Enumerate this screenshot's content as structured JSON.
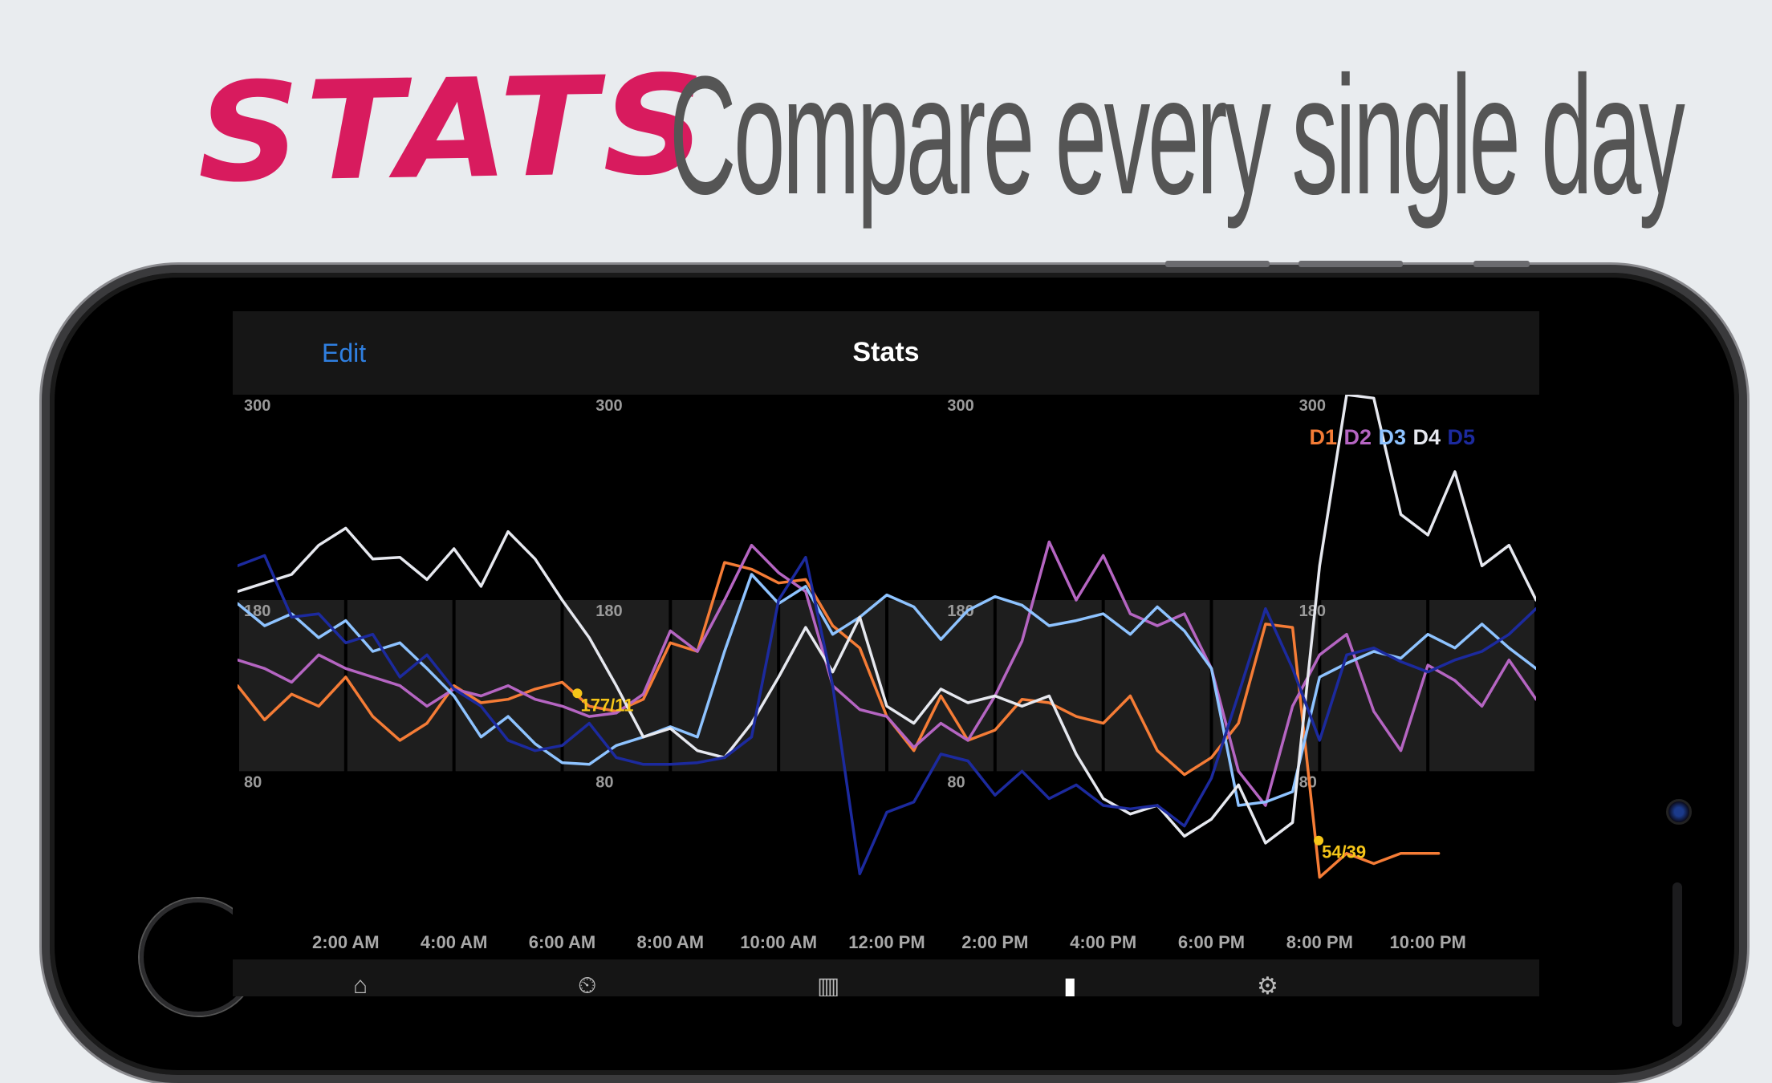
{
  "headline": {
    "label": "STATS",
    "tagline": "Compare every single day"
  },
  "nav": {
    "edit_label": "Edit",
    "title": "Stats"
  },
  "colors": {
    "D1": "#f57c36",
    "D2": "#b565c2",
    "D3": "#8ec3ff",
    "D4": "#e6e8ef",
    "D5": "#1c2a9e",
    "accent": "#2f7fe0",
    "brand": "#d81b5e",
    "annotation": "#f5c518"
  },
  "chart_data": {
    "type": "line",
    "grid": true,
    "legend_position": "top-right",
    "ylim": [
      0,
      300
    ],
    "target_range": [
      80,
      180
    ],
    "x_ticks": [
      "2:00 AM",
      "4:00 AM",
      "6:00 AM",
      "8:00 AM",
      "10:00 AM",
      "12:00 PM",
      "2:00 PM",
      "4:00 PM",
      "6:00 PM",
      "8:00 PM",
      "10:00 PM"
    ],
    "x_tick_hours": [
      2,
      4,
      6,
      8,
      10,
      12,
      14,
      16,
      18,
      20,
      22
    ],
    "y_labels": [
      {
        "value": 300,
        "text": "300"
      },
      {
        "value": 180,
        "text": "180"
      },
      {
        "value": 80,
        "text": "80"
      }
    ],
    "y_label_hours": [
      0,
      6.5,
      13,
      19.5
    ],
    "annotations": [
      {
        "text": "177/11",
        "hour": 6.4,
        "value": 118
      },
      {
        "text": "54/39",
        "hour": 20.1,
        "value": 32
      }
    ],
    "series": [
      {
        "name": "D1",
        "x": [
          0,
          0.5,
          1,
          1.5,
          2,
          2.5,
          3,
          3.5,
          4,
          4.5,
          5,
          5.5,
          6,
          6.5,
          7,
          7.5,
          8,
          8.5,
          9,
          9.5,
          10,
          10.5,
          11,
          11.5,
          12,
          12.5,
          13,
          13.5,
          14,
          14.5,
          15,
          15.5,
          16,
          16.5,
          17,
          17.5,
          18,
          18.5,
          19,
          19.5,
          20,
          20.5,
          21,
          21.5,
          22.2
        ],
        "values": [
          130,
          110,
          125,
          118,
          135,
          112,
          98,
          108,
          130,
          120,
          122,
          128,
          132,
          118,
          115,
          122,
          155,
          150,
          202,
          198,
          190,
          192,
          165,
          152,
          112,
          92,
          124,
          98,
          104,
          122,
          120,
          112,
          108,
          124,
          92,
          78,
          88,
          108,
          166,
          164,
          18,
          32,
          26,
          32,
          32
        ]
      },
      {
        "name": "D2",
        "x": [
          0,
          0.5,
          1,
          1.5,
          2,
          2.5,
          3,
          3.5,
          4,
          4.5,
          5,
          5.5,
          6,
          6.5,
          7,
          7.5,
          8,
          8.5,
          9,
          9.5,
          10,
          10.5,
          11,
          11.5,
          12,
          12.5,
          13,
          13.5,
          14,
          14.5,
          15,
          15.5,
          16,
          16.5,
          17,
          17.5,
          18,
          18.5,
          19,
          19.5,
          20,
          20.5,
          21,
          21.5,
          22,
          22.5,
          23,
          23.5,
          24
        ],
        "values": [
          145,
          140,
          132,
          148,
          140,
          135,
          130,
          118,
          128,
          124,
          130,
          122,
          118,
          112,
          114,
          125,
          162,
          150,
          180,
          212,
          196,
          185,
          130,
          116,
          112,
          94,
          108,
          98,
          124,
          156,
          214,
          180,
          206,
          172,
          165,
          172,
          140,
          80,
          60,
          118,
          148,
          160,
          115,
          92,
          142,
          133,
          118,
          145,
          122
        ]
      },
      {
        "name": "D3",
        "x": [
          0,
          0.5,
          1,
          1.5,
          2,
          2.5,
          3,
          3.5,
          4,
          4.5,
          5,
          5.5,
          6,
          6.5,
          7,
          7.5,
          8,
          8.5,
          9,
          9.5,
          10,
          10.5,
          11,
          11.5,
          12,
          12.5,
          13,
          13.5,
          14,
          14.5,
          15,
          15.5,
          16,
          16.5,
          17,
          17.5,
          18,
          18.5,
          19,
          19.5,
          20,
          20.5,
          21,
          21.5,
          22,
          22.5,
          23,
          23.5,
          24
        ],
        "values": [
          178,
          165,
          172,
          158,
          168,
          150,
          155,
          140,
          124,
          100,
          112,
          96,
          85,
          84,
          95,
          100,
          106,
          100,
          150,
          195,
          178,
          188,
          160,
          170,
          183,
          176,
          157,
          174,
          182,
          177,
          165,
          168,
          172,
          160,
          176,
          162,
          140,
          60,
          62,
          68,
          135,
          143,
          150,
          146,
          160,
          152,
          166,
          152,
          140
        ]
      },
      {
        "name": "D4",
        "x": [
          0,
          0.5,
          1,
          1.5,
          2,
          2.5,
          3,
          3.5,
          4,
          4.5,
          5,
          5.5,
          6,
          6.5,
          7,
          7.5,
          8,
          8.5,
          9,
          9.5,
          10,
          10.5,
          11,
          11.5,
          12,
          12.5,
          13,
          13.5,
          14,
          14.5,
          15,
          15.5,
          16,
          16.5,
          17,
          17.5,
          18,
          18.5,
          19,
          19.5,
          20,
          20.5,
          21,
          21.5,
          22,
          22.5,
          23,
          23.5,
          24
        ],
        "values": [
          185,
          190,
          195,
          212,
          222,
          204,
          205,
          192,
          210,
          188,
          220,
          204,
          180,
          158,
          130,
          100,
          105,
          92,
          88,
          108,
          135,
          164,
          138,
          170,
          118,
          108,
          128,
          120,
          124,
          118,
          124,
          90,
          64,
          55,
          60,
          42,
          52,
          72,
          38,
          50,
          200,
          300,
          298,
          230,
          218,
          255,
          200,
          212,
          180
        ]
      },
      {
        "name": "D5",
        "x": [
          0,
          0.5,
          1,
          1.5,
          2,
          2.5,
          3,
          3.5,
          4,
          4.5,
          5,
          5.5,
          6,
          6.5,
          7,
          7.5,
          8,
          8.5,
          9,
          9.5,
          10,
          10.5,
          11,
          11.5,
          12,
          12.5,
          13,
          13.5,
          14,
          14.5,
          15,
          15.5,
          16,
          16.5,
          17,
          17.5,
          18,
          18.5,
          19,
          19.5,
          20,
          20.5,
          21,
          21.5,
          22,
          22.5,
          23,
          23.5,
          24
        ],
        "values": [
          200,
          206,
          170,
          172,
          155,
          160,
          135,
          148,
          128,
          118,
          98,
          92,
          95,
          108,
          88,
          84,
          84,
          85,
          88,
          100,
          180,
          205,
          130,
          20,
          56,
          62,
          90,
          86,
          66,
          80,
          64,
          72,
          60,
          58,
          60,
          48,
          76,
          125,
          175,
          140,
          98,
          148,
          152,
          144,
          138,
          145,
          150,
          160,
          175
        ]
      }
    ]
  }
}
